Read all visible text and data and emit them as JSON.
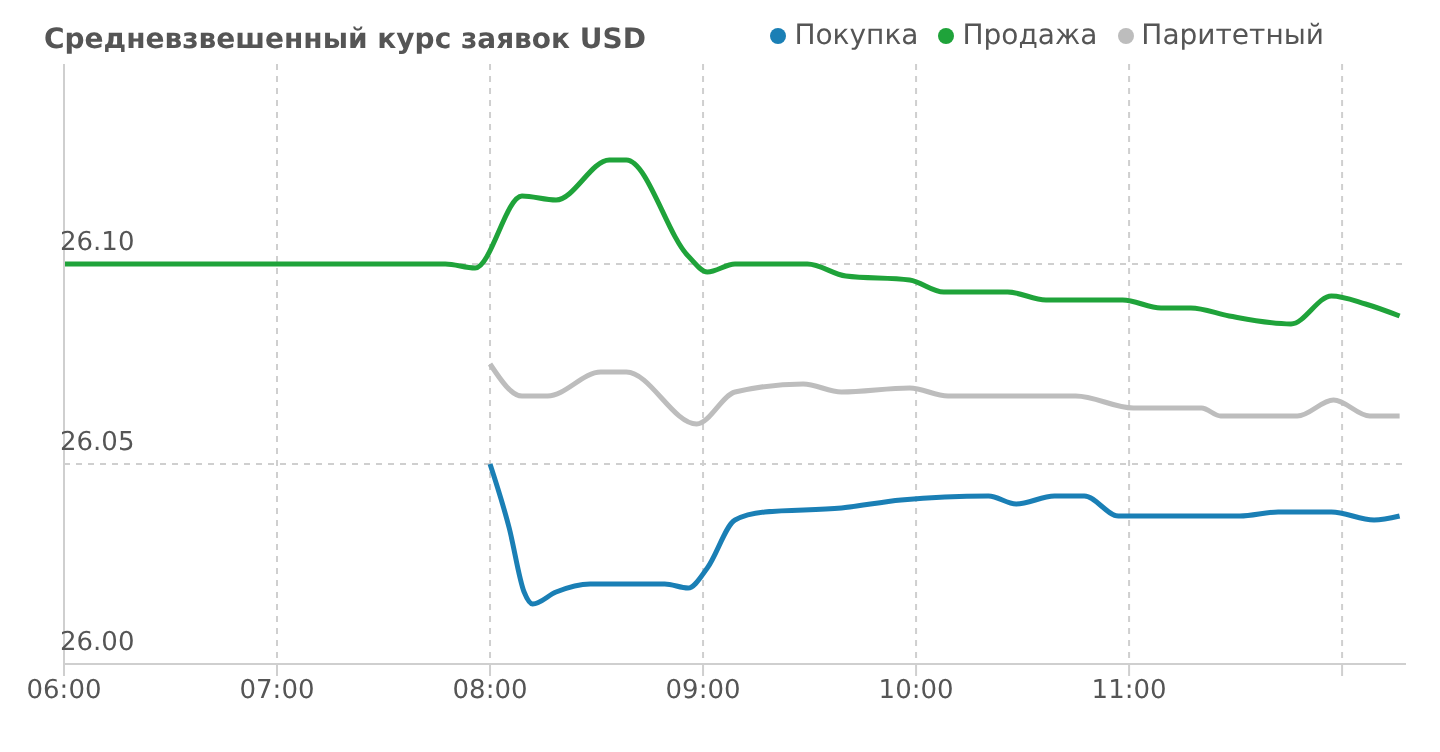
{
  "chart_data": {
    "type": "line",
    "title": "Средневзвешенный курс заявок USD",
    "legend": "top right",
    "grid": true,
    "marker": "none",
    "line_style": "solid",
    "xlim": [
      6,
      12.3
    ],
    "xticks": [
      {
        "value": 6,
        "label": "06:00"
      },
      {
        "value": 7,
        "label": "07:00"
      },
      {
        "value": 8,
        "label": "08:00"
      },
      {
        "value": 9,
        "label": "09:00"
      },
      {
        "value": 10,
        "label": "10:00"
      },
      {
        "value": 11,
        "label": "11:00"
      },
      {
        "value": 12,
        "label": null
      }
    ],
    "ylim": [
      26.0,
      26.15
    ],
    "yticks": [
      {
        "value": 26.0,
        "label": "26.00"
      },
      {
        "value": 26.05,
        "label": "26.05"
      },
      {
        "value": 26.1,
        "label": "26.10"
      }
    ],
    "series": [
      {
        "name": "Покупка",
        "color": "#1a7fb5",
        "x": [
          8.0,
          8.09,
          8.16,
          8.2,
          8.31,
          8.47,
          8.82,
          8.93,
          9.02,
          9.15,
          9.29,
          9.65,
          9.93,
          10.34,
          10.47,
          10.65,
          10.79,
          10.95,
          11.52,
          11.7,
          11.95,
          12.15,
          12.27
        ],
        "values": [
          26.05,
          26.034,
          26.018,
          26.015,
          26.018,
          26.02,
          26.02,
          26.019,
          26.024,
          26.036,
          26.038,
          26.039,
          26.041,
          26.042,
          26.04,
          26.042,
          26.042,
          26.037,
          26.037,
          26.038,
          26.038,
          26.036,
          26.037
        ]
      },
      {
        "name": "Продажа",
        "color": "#1fa33a",
        "x": [
          6.0,
          7.79,
          7.93,
          8.15,
          8.31,
          8.56,
          8.64,
          8.93,
          9.02,
          9.15,
          9.49,
          9.67,
          9.97,
          10.13,
          10.43,
          10.61,
          10.97,
          11.15,
          11.29,
          11.47,
          11.76,
          11.95,
          12.11,
          12.27
        ],
        "values": [
          26.1,
          26.1,
          26.099,
          26.117,
          26.116,
          26.126,
          26.126,
          26.102,
          26.098,
          26.1,
          26.1,
          26.097,
          26.096,
          26.093,
          26.093,
          26.091,
          26.091,
          26.089,
          26.089,
          26.087,
          26.085,
          26.092,
          26.09,
          26.087
        ]
      },
      {
        "name": "Паритетный",
        "color": "#bdbdbd",
        "x": [
          8.0,
          8.15,
          8.27,
          8.52,
          8.64,
          8.97,
          9.15,
          9.47,
          9.65,
          9.97,
          10.15,
          10.75,
          11.02,
          11.34,
          11.43,
          11.79,
          11.96,
          12.13,
          12.27
        ],
        "values": [
          26.075,
          26.067,
          26.067,
          26.073,
          26.073,
          26.06,
          26.068,
          26.07,
          26.068,
          26.069,
          26.067,
          26.067,
          26.064,
          26.064,
          26.062,
          26.062,
          26.066,
          26.062,
          26.062
        ]
      }
    ]
  }
}
